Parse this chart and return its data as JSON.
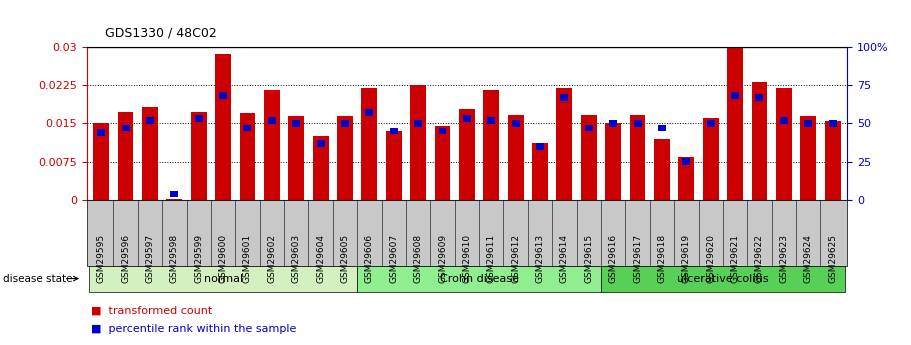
{
  "title": "GDS1330 / 48C02",
  "samples": [
    "GSM29595",
    "GSM29596",
    "GSM29597",
    "GSM29598",
    "GSM29599",
    "GSM29600",
    "GSM29601",
    "GSM29602",
    "GSM29603",
    "GSM29604",
    "GSM29605",
    "GSM29606",
    "GSM29607",
    "GSM29608",
    "GSM29609",
    "GSM29610",
    "GSM29611",
    "GSM29612",
    "GSM29613",
    "GSM29614",
    "GSM29615",
    "GSM29616",
    "GSM29617",
    "GSM29618",
    "GSM29619",
    "GSM29620",
    "GSM29621",
    "GSM29622",
    "GSM29623",
    "GSM29624",
    "GSM29625"
  ],
  "transformed_count": [
    0.015,
    0.0172,
    0.0182,
    0.0002,
    0.0172,
    0.0285,
    0.017,
    0.0215,
    0.0165,
    0.0125,
    0.0165,
    0.022,
    0.0135,
    0.0225,
    0.0145,
    0.0178,
    0.0215,
    0.0167,
    0.0112,
    0.022,
    0.0167,
    0.015,
    0.0167,
    0.012,
    0.0085,
    0.016,
    0.03,
    0.023,
    0.022,
    0.0165,
    0.0155
  ],
  "percentile_rank": [
    44,
    47,
    52,
    4,
    53,
    68,
    47,
    52,
    50,
    37,
    50,
    57,
    45,
    50,
    45,
    53,
    52,
    50,
    35,
    67,
    47,
    50,
    50,
    47,
    25,
    50,
    68,
    67,
    52,
    50,
    50
  ],
  "groups": [
    {
      "label": "normal",
      "start": 0,
      "end": 11,
      "color": "#d4f0c0"
    },
    {
      "label": "Crohn disease",
      "start": 11,
      "end": 21,
      "color": "#90ee90"
    },
    {
      "label": "ulcerative colitis",
      "start": 21,
      "end": 31,
      "color": "#58d058"
    }
  ],
  "bar_color": "#cc0000",
  "percentile_color": "#0000cc",
  "ylim_left": [
    0,
    0.03
  ],
  "ylim_right": [
    0,
    100
  ],
  "yticks_left": [
    0,
    0.0075,
    0.015,
    0.0225,
    0.03
  ],
  "yticks_left_labels": [
    "0",
    "0.0075",
    "0.015",
    "0.0225",
    "0.03"
  ],
  "yticks_right": [
    0,
    25,
    50,
    75,
    100
  ],
  "yticks_right_labels": [
    "0",
    "25",
    "50",
    "75",
    "100%"
  ],
  "background_color": "#ffffff",
  "xtick_bg_color": "#c8c8c8",
  "bar_width": 0.65
}
